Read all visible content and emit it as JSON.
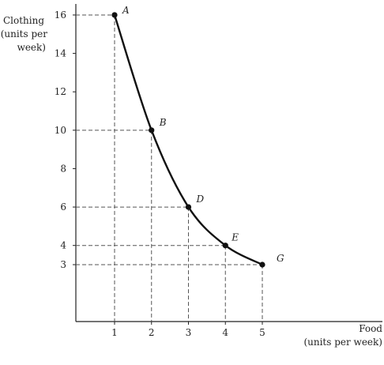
{
  "chart_data": {
    "type": "line",
    "ylabel": [
      "Clothing",
      "(units per",
      "week)"
    ],
    "xlabel": [
      "Food",
      "(units per week)"
    ],
    "xlim": [
      0,
      6
    ],
    "ylim": [
      0,
      17
    ],
    "x_ticks": [
      1,
      2,
      3,
      4,
      5
    ],
    "y_ticks": [
      3,
      4,
      6,
      8,
      10,
      12,
      14,
      16
    ],
    "points": [
      {
        "label": "A",
        "x": 1,
        "y": 16
      },
      {
        "label": "B",
        "x": 2,
        "y": 10
      },
      {
        "label": "D",
        "x": 3,
        "y": 6
      },
      {
        "label": "E",
        "x": 4,
        "y": 4
      },
      {
        "label": "G",
        "x": 5,
        "y": 3
      }
    ],
    "grid": false
  }
}
